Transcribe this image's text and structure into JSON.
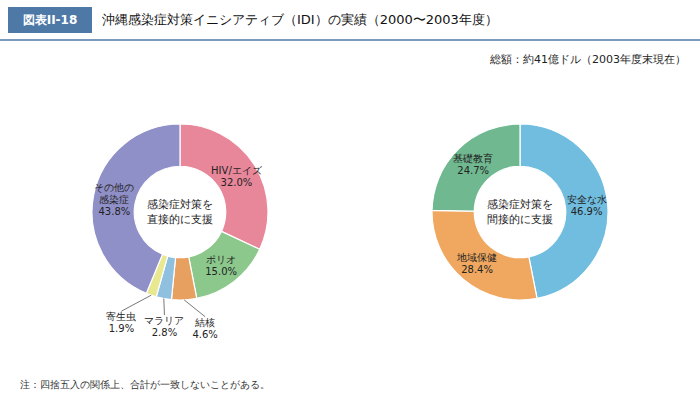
{
  "title_label": "図表II-18",
  "title": "沖縄感染症対策イニシアティブ（IDI）の実績（2000〜2003年度）",
  "subtitle": "総額：約41億ドル（2003年度末現在）",
  "note": "注：四捨五入の関係上、合計が一致しないことがある。",
  "chart_data": [
    {
      "type": "donut",
      "annotations": [
        "感染症対策を",
        "直接的に支援"
      ],
      "categories": [
        "HIV/エイズ",
        "ポリオ",
        "結核",
        "マラリア",
        "寄生虫",
        "その他の\n感染症"
      ],
      "values": [
        32.0,
        15.0,
        4.6,
        2.8,
        1.9,
        43.8
      ],
      "value_labels": [
        "32.0%",
        "15.0%",
        "4.6%",
        "2.8%",
        "1.9%",
        "43.8%"
      ],
      "colors": [
        "#e8869a",
        "#8cc88c",
        "#e8a060",
        "#90c0e0",
        "#e8e890",
        "#9090c8"
      ],
      "data_labels": true
    },
    {
      "type": "donut",
      "annotations": [
        "感染症対策を",
        "間接的に支援"
      ],
      "categories": [
        "安全な水",
        "地域保健",
        "基礎教育"
      ],
      "values": [
        46.9,
        28.4,
        24.7
      ],
      "value_labels": [
        "46.9%",
        "28.4%",
        "24.7%"
      ],
      "colors": [
        "#70bde0",
        "#f0a860",
        "#70b890"
      ],
      "data_labels": true
    }
  ]
}
